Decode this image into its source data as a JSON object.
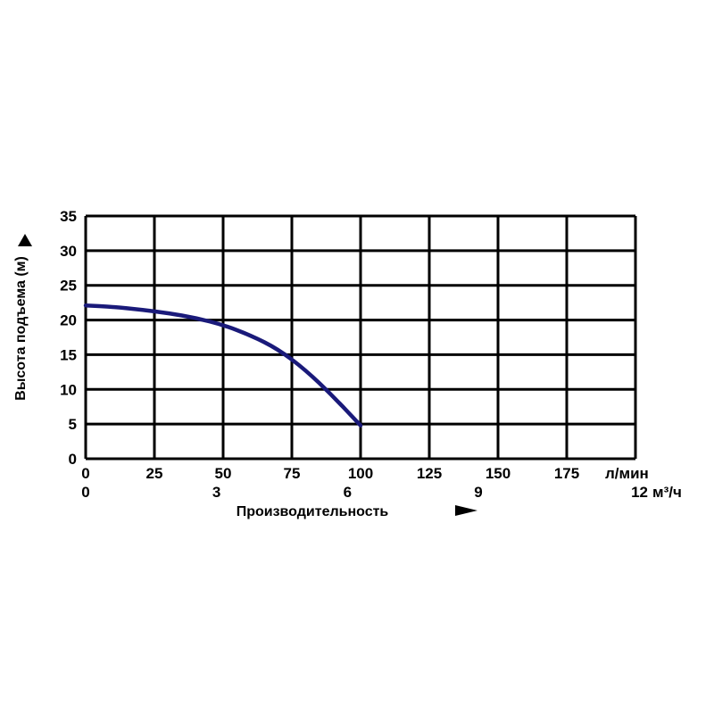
{
  "chart_data": {
    "type": "line",
    "ylabel": "Высота подъема (м)",
    "xlabel": "Производительность",
    "ylim": [
      0,
      35
    ],
    "y_ticks": [
      "0",
      "5",
      "10",
      "15",
      "20",
      "25",
      "30",
      "35"
    ],
    "xlim": [
      0,
      200
    ],
    "x_ticks": [
      "0",
      "25",
      "50",
      "75",
      "100",
      "125",
      "150",
      "175"
    ],
    "x_unit": "л/мин",
    "x2_ticks": [
      "0",
      "3",
      "6",
      "9",
      "12"
    ],
    "x2_unit": "м³/ч",
    "grid": true,
    "series": [
      {
        "color": "#1a1a7a",
        "x": [
          0,
          10,
          20,
          30,
          40,
          50,
          60,
          70,
          80,
          90,
          100
        ],
        "y": [
          22.1,
          21.9,
          21.5,
          21.0,
          20.3,
          19.3,
          17.8,
          15.8,
          12.8,
          9.0,
          4.8
        ]
      }
    ]
  }
}
